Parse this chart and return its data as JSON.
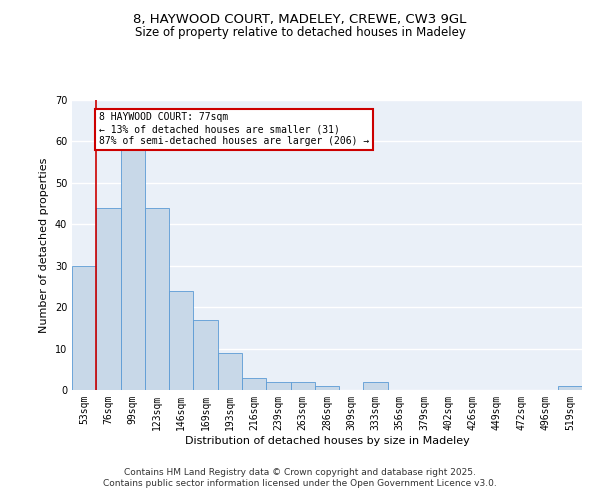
{
  "title1": "8, HAYWOOD COURT, MADELEY, CREWE, CW3 9GL",
  "title2": "Size of property relative to detached houses in Madeley",
  "xlabel": "Distribution of detached houses by size in Madeley",
  "ylabel": "Number of detached properties",
  "bar_color": "#c8d8e8",
  "bar_edge_color": "#5b9bd5",
  "categories": [
    "53sqm",
    "76sqm",
    "99sqm",
    "123sqm",
    "146sqm",
    "169sqm",
    "193sqm",
    "216sqm",
    "239sqm",
    "263sqm",
    "286sqm",
    "309sqm",
    "333sqm",
    "356sqm",
    "379sqm",
    "402sqm",
    "426sqm",
    "449sqm",
    "472sqm",
    "496sqm",
    "519sqm"
  ],
  "values": [
    30,
    44,
    59,
    44,
    24,
    17,
    9,
    3,
    2,
    2,
    1,
    0,
    2,
    0,
    0,
    0,
    0,
    0,
    0,
    0,
    1
  ],
  "ylim": [
    0,
    70
  ],
  "yticks": [
    0,
    10,
    20,
    30,
    40,
    50,
    60,
    70
  ],
  "property_line_x": 0.5,
  "annotation_text": "8 HAYWOOD COURT: 77sqm\n← 13% of detached houses are smaller (31)\n87% of semi-detached houses are larger (206) →",
  "annotation_box_color": "#ffffff",
  "annotation_box_edge": "#cc0000",
  "property_line_color": "#cc0000",
  "background_color": "#eaf0f8",
  "footer_text": "Contains HM Land Registry data © Crown copyright and database right 2025.\nContains public sector information licensed under the Open Government Licence v3.0.",
  "title_fontsize": 9.5,
  "subtitle_fontsize": 8.5,
  "xlabel_fontsize": 8,
  "ylabel_fontsize": 8,
  "tick_fontsize": 7,
  "footer_fontsize": 6.5,
  "annotation_fontsize": 7
}
